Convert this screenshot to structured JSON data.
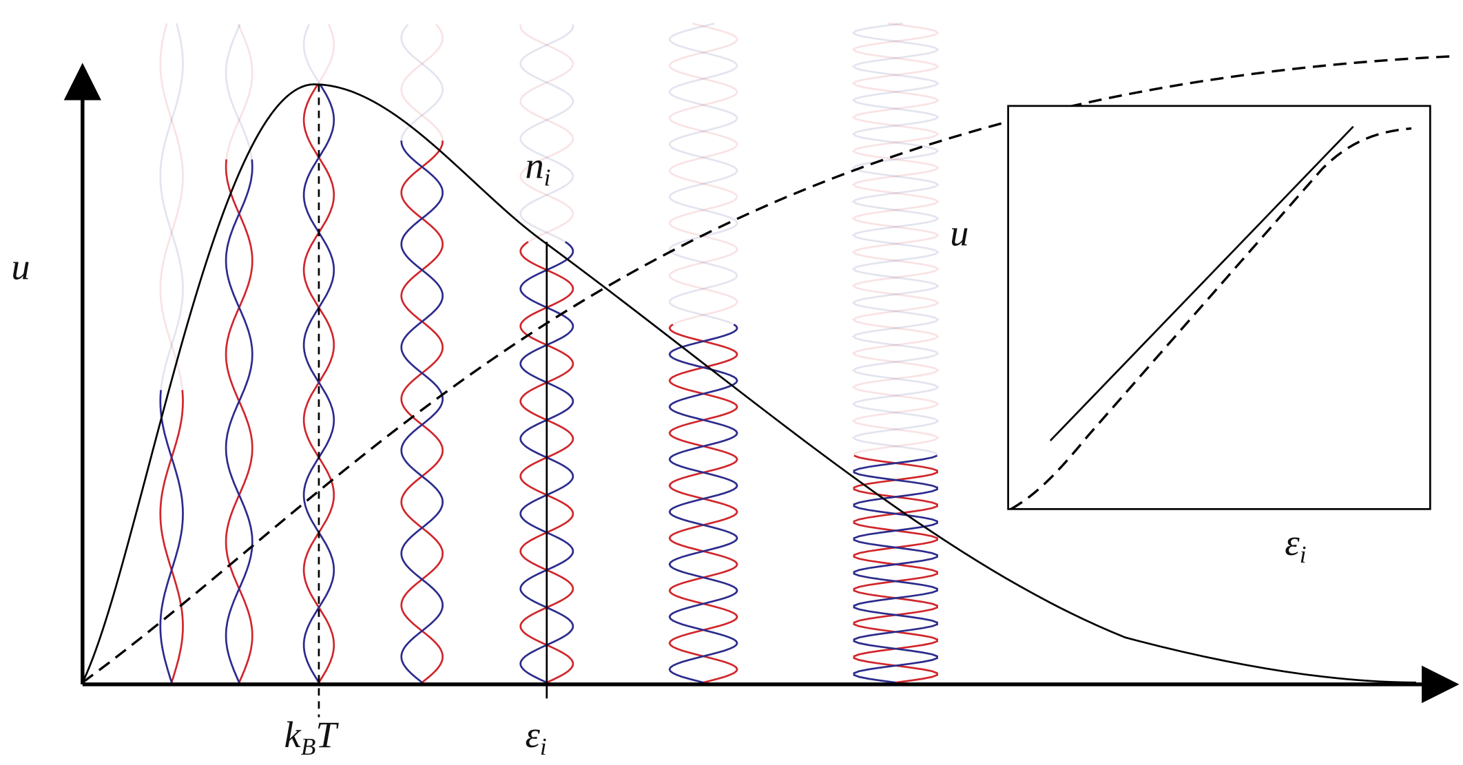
{
  "main": {
    "y_label": "u",
    "x_labels": [
      [
        "k",
        "B",
        "T"
      ],
      [
        "ε",
        "i"
      ]
    ],
    "curve_label": [
      "n",
      "i"
    ]
  },
  "inset": {
    "y_label": "u",
    "x_label": [
      "ε",
      "i"
    ]
  }
}
